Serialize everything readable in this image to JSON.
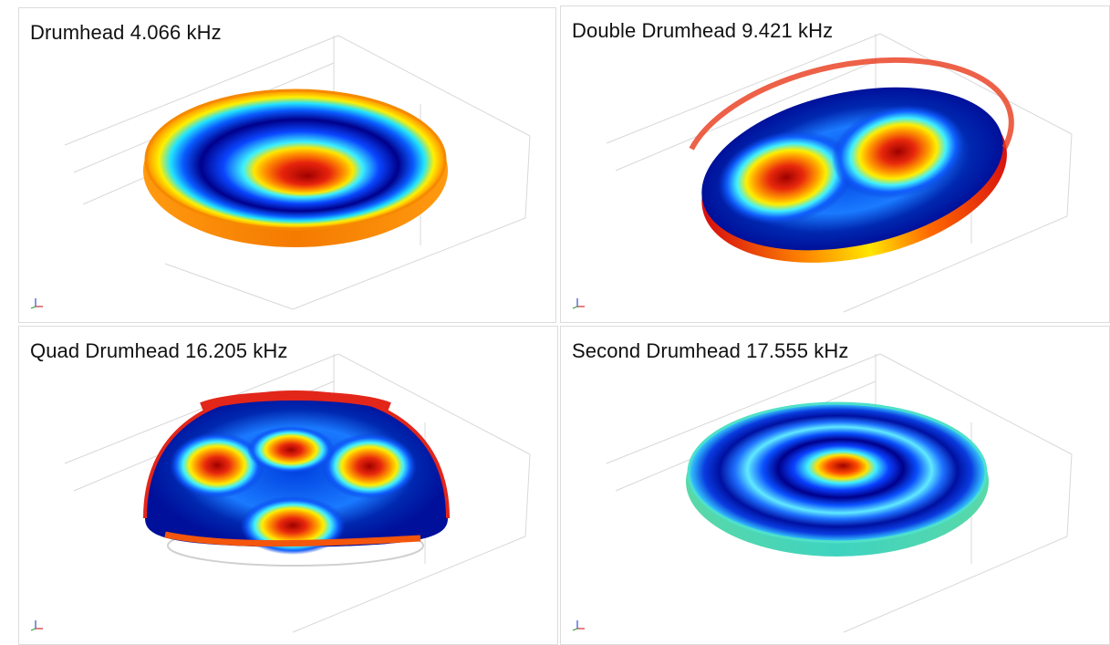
{
  "panels": [
    {
      "title": "Drumhead 4.066 kHz",
      "mode_shape": "fundamental",
      "rim_color": "#f6941e",
      "hotspots": 1
    },
    {
      "title": "Double Drumhead 9.421 kHz",
      "mode_shape": "two-lobe",
      "rim_color": "#e83a1a",
      "hotspots": 2
    },
    {
      "title": "Quad Drumhead 16.205 kHz",
      "mode_shape": "four-lobe",
      "rim_color": "#e3261a",
      "hotspots": 4
    },
    {
      "title": "Second Drumhead 17.555 kHz",
      "mode_shape": "second-radial",
      "rim_color": "#58dba0",
      "hotspots": 1
    }
  ],
  "colormap": [
    "#00007f",
    "#0050ff",
    "#00d8ff",
    "#ffff00",
    "#ff6a00",
    "#a80000"
  ],
  "icons": {
    "axis_triad": "xyz-axis-triad-icon"
  }
}
